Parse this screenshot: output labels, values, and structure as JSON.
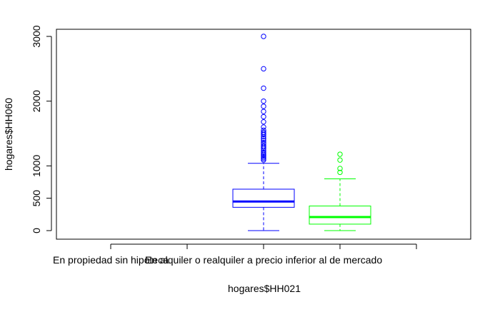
{
  "chart_data": {
    "type": "boxplot",
    "xlabel": "hogares$HH021",
    "ylabel": "hogares$HH060",
    "ylim": [
      -100,
      3100
    ],
    "yticks": [
      0,
      500,
      1000,
      2000,
      3000
    ],
    "categories": [
      "En propiedad sin hipoteca",
      "",
      "En alquiler o realquiler a precio inferior al de mercado",
      "",
      ""
    ],
    "visible_tick_labels": [
      "En propiedad sin hipoteca",
      "En alquiler o realquiler a precio inferior al de mercado"
    ],
    "grid": false,
    "boxes": [
      {
        "position": 3,
        "color": "#0000ff",
        "whisker_low": 0,
        "q1": 360,
        "median": 450,
        "q3": 640,
        "whisker_high": 1040,
        "outliers": [
          1090,
          1110,
          1130,
          1150,
          1170,
          1190,
          1210,
          1240,
          1270,
          1290,
          1310,
          1340,
          1360,
          1390,
          1420,
          1450,
          1480,
          1500,
          1520,
          1550,
          1600,
          1680,
          1760,
          1840,
          1920,
          2000,
          2200,
          2500,
          3000
        ]
      },
      {
        "position": 4,
        "color": "#00ff00",
        "whisker_low": 0,
        "q1": 100,
        "median": 210,
        "q3": 380,
        "whisker_high": 800,
        "outliers": [
          900,
          960,
          1090,
          1180
        ]
      }
    ]
  }
}
